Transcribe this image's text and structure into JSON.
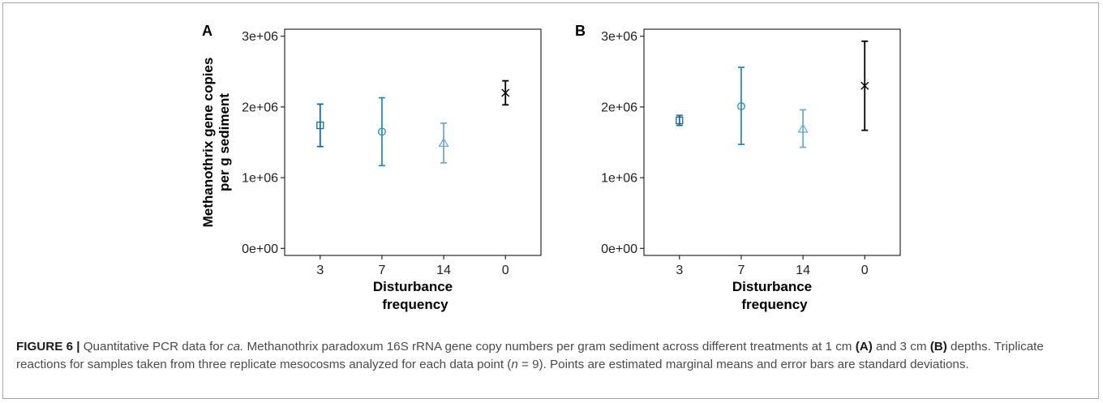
{
  "chart_data": [
    {
      "type": "scatter",
      "panel_label": "A",
      "ylabel_line1": "Methanothrix gene copies",
      "ylabel_line2": "per g sediment",
      "xlabel_line1": "Disturbance",
      "xlabel_line2": "frequency",
      "categories": [
        "3",
        "7",
        "14",
        "0"
      ],
      "ylim": [
        -100000,
        3100000
      ],
      "yticks": [
        "0e+00",
        "1e+06",
        "2e+06",
        "3e+06"
      ],
      "ytick_values": [
        0,
        1000000,
        2000000,
        3000000
      ],
      "points": [
        {
          "category": "3",
          "mean": 1740000,
          "low": 1440000,
          "high": 2040000,
          "marker": "square",
          "color": "#1b6a97"
        },
        {
          "category": "7",
          "mean": 1650000,
          "low": 1170000,
          "high": 2130000,
          "marker": "circle",
          "color": "#2b8cbe"
        },
        {
          "category": "14",
          "mean": 1490000,
          "low": 1210000,
          "high": 1770000,
          "marker": "triangle",
          "color": "#6aaed6"
        },
        {
          "category": "0",
          "mean": 2200000,
          "low": 2030000,
          "high": 2370000,
          "marker": "x",
          "color": "#000000"
        }
      ]
    },
    {
      "type": "scatter",
      "panel_label": "B",
      "ylabel_line1": "",
      "ylabel_line2": "",
      "xlabel_line1": "Disturbance",
      "xlabel_line2": "frequency",
      "categories": [
        "3",
        "7",
        "14",
        "0"
      ],
      "ylim": [
        -100000,
        3100000
      ],
      "yticks": [
        "0e+00",
        "1e+06",
        "2e+06",
        "3e+06"
      ],
      "ytick_values": [
        0,
        1000000,
        2000000,
        3000000
      ],
      "points": [
        {
          "category": "3",
          "mean": 1810000,
          "low": 1740000,
          "high": 1880000,
          "marker": "square",
          "color": "#1b6a97"
        },
        {
          "category": "7",
          "mean": 2010000,
          "low": 1470000,
          "high": 2560000,
          "marker": "circle",
          "color": "#2b8cbe"
        },
        {
          "category": "14",
          "mean": 1690000,
          "low": 1430000,
          "high": 1960000,
          "marker": "triangle",
          "color": "#6aaed6"
        },
        {
          "category": "0",
          "mean": 2300000,
          "low": 1670000,
          "high": 2930000,
          "marker": "x",
          "color": "#000000"
        }
      ]
    }
  ],
  "caption": {
    "fig_label": "FIGURE 6 |",
    "t1": " Quantitative PCR data for ",
    "t2_italic": "ca.",
    "t3": " Methanothrix paradoxum 16S rRNA gene copy numbers per gram sediment across different treatments at 1 cm ",
    "t4_bold": "(A)",
    "t5": " and 3 cm ",
    "t6_bold": "(B)",
    "t7": " depths. Triplicate reactions for samples taken from three replicate mesocosms analyzed for each data point (",
    "t8_italic": "n",
    "t9": " = 9). Points are estimated marginal means and error bars are standard deviations."
  }
}
